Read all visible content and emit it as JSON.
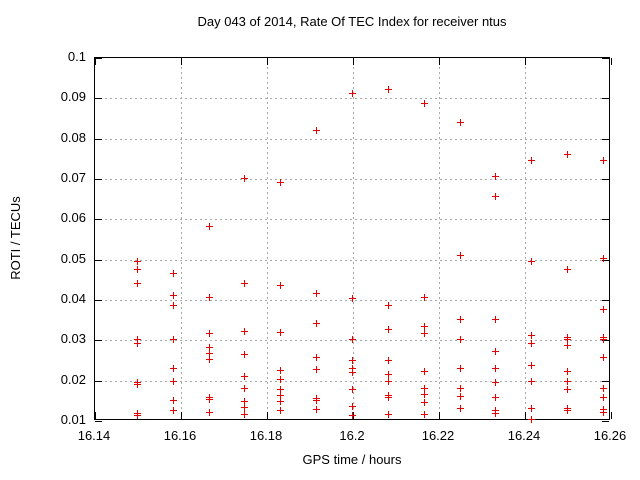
{
  "chart_data": {
    "type": "scatter",
    "title": "Day 043 of 2014, Rate Of TEC Index for receiver ntus",
    "xlabel": "GPS time / hours",
    "ylabel": "ROTI / TECUs",
    "xlim": [
      16.14,
      16.26
    ],
    "ylim": [
      0.01,
      0.1
    ],
    "grid": true,
    "legend": "none",
    "marker": {
      "shape": "plus",
      "size": 7
    },
    "xticks": {
      "values": [
        16.14,
        16.16,
        16.18,
        16.2,
        16.22,
        16.24,
        16.26
      ],
      "labels": [
        "16.14",
        "16.16",
        "16.18",
        "16.2",
        "16.22",
        "16.24",
        "16.26"
      ]
    },
    "yticks": {
      "values": [
        0.01,
        0.02,
        0.03,
        0.04,
        0.05,
        0.06,
        0.07,
        0.08,
        0.09,
        0.1
      ],
      "labels": [
        "0.01",
        "0.02",
        "0.03",
        "0.04",
        "0.05",
        "0.06",
        "0.07",
        "0.08",
        "0.09",
        "0.1"
      ]
    },
    "series": [
      {
        "name": "ROTI",
        "points": [
          [
            16.15,
            0.0495
          ],
          [
            16.15,
            0.0475
          ],
          [
            16.15,
            0.044
          ],
          [
            16.15,
            0.0302
          ],
          [
            16.15,
            0.029
          ],
          [
            16.15,
            0.0195
          ],
          [
            16.15,
            0.019
          ],
          [
            16.15,
            0.0117
          ],
          [
            16.15,
            0.0112
          ],
          [
            16.1583,
            0.0465
          ],
          [
            16.1583,
            0.041
          ],
          [
            16.1583,
            0.0386
          ],
          [
            16.1583,
            0.0302
          ],
          [
            16.1583,
            0.0228
          ],
          [
            16.1583,
            0.0196
          ],
          [
            16.1583,
            0.015
          ],
          [
            16.1583,
            0.0125
          ],
          [
            16.1667,
            0.058
          ],
          [
            16.1667,
            0.0405
          ],
          [
            16.1667,
            0.0315
          ],
          [
            16.1667,
            0.028
          ],
          [
            16.1667,
            0.0265
          ],
          [
            16.1667,
            0.0252
          ],
          [
            16.1667,
            0.0157
          ],
          [
            16.1667,
            0.0151
          ],
          [
            16.1667,
            0.012
          ],
          [
            16.175,
            0.07
          ],
          [
            16.175,
            0.044
          ],
          [
            16.175,
            0.032
          ],
          [
            16.175,
            0.0263
          ],
          [
            16.175,
            0.021
          ],
          [
            16.175,
            0.0179
          ],
          [
            16.175,
            0.0147
          ],
          [
            16.175,
            0.0132
          ],
          [
            16.175,
            0.0115
          ],
          [
            16.1833,
            0.069
          ],
          [
            16.1833,
            0.0435
          ],
          [
            16.1833,
            0.0319
          ],
          [
            16.1833,
            0.0225
          ],
          [
            16.1833,
            0.0201
          ],
          [
            16.1833,
            0.0176
          ],
          [
            16.1833,
            0.0161
          ],
          [
            16.1833,
            0.0147
          ],
          [
            16.1833,
            0.0126
          ],
          [
            16.1917,
            0.082
          ],
          [
            16.1917,
            0.0416
          ],
          [
            16.1917,
            0.0341
          ],
          [
            16.1917,
            0.0255
          ],
          [
            16.1917,
            0.0227
          ],
          [
            16.1917,
            0.0154
          ],
          [
            16.1917,
            0.0149
          ],
          [
            16.1917,
            0.0128
          ],
          [
            16.2,
            0.091
          ],
          [
            16.2,
            0.0403
          ],
          [
            16.2,
            0.0301
          ],
          [
            16.2,
            0.025
          ],
          [
            16.2,
            0.0228
          ],
          [
            16.2,
            0.0218
          ],
          [
            16.2,
            0.0176
          ],
          [
            16.2,
            0.0135
          ],
          [
            16.2,
            0.0112
          ],
          [
            16.2083,
            0.092
          ],
          [
            16.2083,
            0.0385
          ],
          [
            16.2083,
            0.0325
          ],
          [
            16.2083,
            0.0248
          ],
          [
            16.2083,
            0.0215
          ],
          [
            16.2083,
            0.0197
          ],
          [
            16.2083,
            0.0163
          ],
          [
            16.2083,
            0.0158
          ],
          [
            16.2083,
            0.0114
          ],
          [
            16.2167,
            0.0885
          ],
          [
            16.2167,
            0.0405
          ],
          [
            16.2167,
            0.0334
          ],
          [
            16.2167,
            0.0316
          ],
          [
            16.2167,
            0.0222
          ],
          [
            16.2167,
            0.018
          ],
          [
            16.2167,
            0.0164
          ],
          [
            16.2167,
            0.0145
          ],
          [
            16.2167,
            0.0114
          ],
          [
            16.225,
            0.084
          ],
          [
            16.225,
            0.051
          ],
          [
            16.225,
            0.0351
          ],
          [
            16.225,
            0.0302
          ],
          [
            16.225,
            0.023
          ],
          [
            16.225,
            0.018
          ],
          [
            16.225,
            0.016
          ],
          [
            16.225,
            0.013
          ],
          [
            16.2333,
            0.0705
          ],
          [
            16.2333,
            0.0655
          ],
          [
            16.2333,
            0.0351
          ],
          [
            16.2333,
            0.027
          ],
          [
            16.2333,
            0.0229
          ],
          [
            16.2333,
            0.0195
          ],
          [
            16.2333,
            0.0158
          ],
          [
            16.2333,
            0.0126
          ],
          [
            16.2333,
            0.0117
          ],
          [
            16.2417,
            0.0745
          ],
          [
            16.2417,
            0.0495
          ],
          [
            16.2417,
            0.031
          ],
          [
            16.2417,
            0.0292
          ],
          [
            16.2417,
            0.0236
          ],
          [
            16.2417,
            0.0197
          ],
          [
            16.2417,
            0.0129
          ],
          [
            16.2417,
            0.0103
          ],
          [
            16.25,
            0.076
          ],
          [
            16.25,
            0.0475
          ],
          [
            16.25,
            0.0305
          ],
          [
            16.25,
            0.03
          ],
          [
            16.25,
            0.0286
          ],
          [
            16.25,
            0.0222
          ],
          [
            16.25,
            0.0197
          ],
          [
            16.25,
            0.0178
          ],
          [
            16.25,
            0.013
          ],
          [
            16.25,
            0.0126
          ],
          [
            16.2583,
            0.0745
          ],
          [
            16.2583,
            0.0502
          ],
          [
            16.2583,
            0.0375
          ],
          [
            16.2583,
            0.0305
          ],
          [
            16.2583,
            0.03
          ],
          [
            16.2583,
            0.0255
          ],
          [
            16.2583,
            0.018
          ],
          [
            16.2583,
            0.0158
          ],
          [
            16.2583,
            0.0127
          ],
          [
            16.2583,
            0.0119
          ]
        ]
      }
    ]
  },
  "colors": {
    "marker": "#e60000",
    "grid": "#a8a8a8",
    "axis": "#000000",
    "background": "#ffffff",
    "text": "#000000"
  }
}
